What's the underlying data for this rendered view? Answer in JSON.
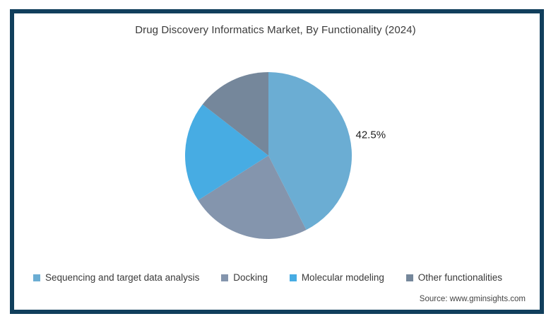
{
  "frame": {
    "border_color": "#113f5c",
    "background": "#ffffff"
  },
  "chart_data": {
    "type": "pie",
    "title": "Drug Discovery Informatics Market, By Functionality (2024)",
    "slices": [
      {
        "name": "Sequencing and target data analysis",
        "value": 42.5,
        "label": "42.5%",
        "color": "#6badd3"
      },
      {
        "name": "Docking",
        "value": 23.5,
        "label": "",
        "color": "#8495ad"
      },
      {
        "name": "Molecular modeling",
        "value": 19.5,
        "label": "",
        "color": "#47ace3"
      },
      {
        "name": "Other functionalities",
        "value": 14.5,
        "label": "",
        "color": "#75879b"
      }
    ],
    "start_angle_deg": 0,
    "direction": "clockwise",
    "legend_position": "bottom",
    "label_color": "#1f1f1f",
    "title_color": "#3b3b3b"
  },
  "source": {
    "text": "Source: www.gminsights.com"
  }
}
